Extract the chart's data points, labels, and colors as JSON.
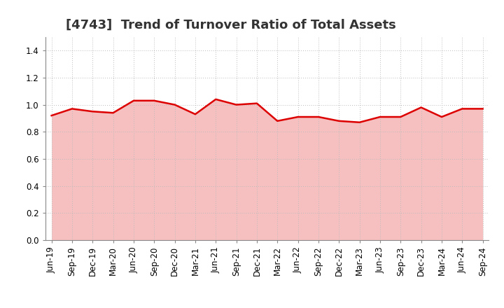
{
  "title": "[4743]  Trend of Turnover Ratio of Total Assets",
  "labels": [
    "Jun-19",
    "Sep-19",
    "Dec-19",
    "Mar-20",
    "Jun-20",
    "Sep-20",
    "Dec-20",
    "Mar-21",
    "Jun-21",
    "Sep-21",
    "Dec-21",
    "Mar-22",
    "Jun-22",
    "Sep-22",
    "Dec-22",
    "Mar-23",
    "Jun-23",
    "Sep-23",
    "Dec-23",
    "Mar-24",
    "Jun-24",
    "Sep-24"
  ],
  "values": [
    0.92,
    0.97,
    0.95,
    0.94,
    1.03,
    1.03,
    1.0,
    0.93,
    1.04,
    1.0,
    1.01,
    0.88,
    0.91,
    0.91,
    0.88,
    0.87,
    0.91,
    0.91,
    0.98,
    0.91,
    0.97,
    0.97
  ],
  "line_color": "#dd0000",
  "fill_color": "#f7c0c0",
  "background_color": "#ffffff",
  "plot_bg_color": "#ffffff",
  "grid_color": "#bbbbbb",
  "ylim": [
    0.0,
    1.5
  ],
  "yticks": [
    0.0,
    0.2,
    0.4,
    0.6,
    0.8,
    1.0,
    1.2,
    1.4
  ],
  "title_fontsize": 13,
  "tick_fontsize": 8.5
}
